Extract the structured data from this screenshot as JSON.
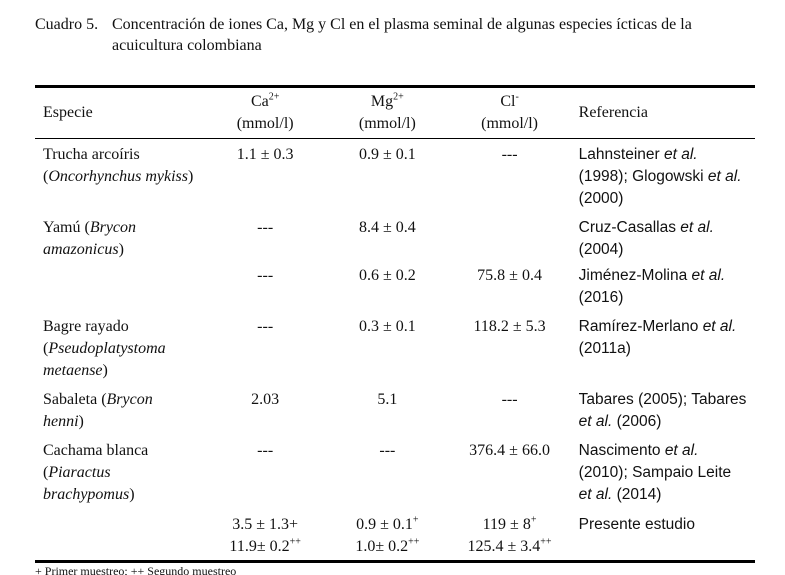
{
  "caption": {
    "label": "Cuadro 5.",
    "text": "Concentración de iones Ca, Mg y Cl en el plasma seminal de algunas especies ícticas de la acuicultura colombiana"
  },
  "table": {
    "header": {
      "especie": [
        {
          "t": "Especie"
        }
      ],
      "ca": [
        [
          {
            "t": "Ca"
          },
          {
            "sup": "2+"
          }
        ],
        [
          {
            "t": "(mmol/l)"
          }
        ]
      ],
      "mg": [
        [
          {
            "t": "Mg"
          },
          {
            "sup": "2+"
          }
        ],
        [
          {
            "t": "(mmol/l)"
          }
        ]
      ],
      "cl": [
        [
          {
            "t": "Cl"
          },
          {
            "sup": "-"
          }
        ],
        [
          {
            "t": "(mmol/l)"
          }
        ]
      ],
      "ref": [
        {
          "t": "Referencia"
        }
      ]
    },
    "rows": [
      {
        "especie": [
          {
            "t": "Trucha arcoíris ("
          },
          {
            "i": "Oncorhynchus mykiss"
          },
          {
            "t": ")"
          }
        ],
        "entries": [
          {
            "ca": [
              [
                {
                  "t": "1.1 ± 0.3"
                }
              ]
            ],
            "mg": [
              [
                {
                  "t": "0.9 ± 0.1"
                }
              ]
            ],
            "cl": [
              [
                {
                  "t": "---"
                }
              ]
            ],
            "ref": [
              {
                "t": "Lahnsteiner "
              },
              {
                "i": "et al."
              },
              {
                "t": " (1998); Glogowski "
              },
              {
                "i": "et al."
              },
              {
                "t": " (2000)"
              }
            ]
          }
        ]
      },
      {
        "especie": [
          {
            "t": "Yamú ("
          },
          {
            "i": "Brycon amazonicus"
          },
          {
            "t": ")"
          }
        ],
        "entries": [
          {
            "ca": [
              [
                {
                  "t": "---"
                }
              ]
            ],
            "mg": [
              [
                {
                  "t": "8.4 ± 0.4"
                }
              ]
            ],
            "cl": [],
            "ref": [
              {
                "t": "Cruz-Casallas "
              },
              {
                "i": "et al."
              },
              {
                "t": " (2004)"
              }
            ]
          },
          {
            "ca": [
              [
                {
                  "t": "---"
                }
              ]
            ],
            "mg": [
              [
                {
                  "t": "0.6 ± 0.2"
                }
              ]
            ],
            "cl": [
              [
                {
                  "t": "75.8 ± 0.4"
                }
              ]
            ],
            "ref": [
              {
                "t": "Jiménez-Molina "
              },
              {
                "i": "et al."
              },
              {
                "t": " (2016)"
              }
            ]
          }
        ]
      },
      {
        "especie": [
          {
            "t": "Bagre rayado ("
          },
          {
            "i": "Pseudoplatystoma metaense"
          },
          {
            "t": ")"
          }
        ],
        "entries": [
          {
            "ca": [
              [
                {
                  "t": "---"
                }
              ]
            ],
            "mg": [
              [
                {
                  "t": "0.3 ± 0.1"
                }
              ]
            ],
            "cl": [
              [
                {
                  "t": "118.2 ± 5.3"
                }
              ]
            ],
            "ref": [
              {
                "t": "Ramírez-Merlano "
              },
              {
                "i": "et al."
              },
              {
                "t": " (2011a)"
              }
            ]
          }
        ]
      },
      {
        "especie": [
          {
            "t": "Sabaleta ("
          },
          {
            "i": "Brycon henni"
          },
          {
            "t": ")"
          }
        ],
        "entries": [
          {
            "ca": [
              [
                {
                  "t": "2.03"
                }
              ]
            ],
            "mg": [
              [
                {
                  "t": "5.1"
                }
              ]
            ],
            "cl": [
              [
                {
                  "t": "---"
                }
              ]
            ],
            "ref": [
              {
                "t": "Tabares (2005); Tabares "
              },
              {
                "i": "et al."
              },
              {
                "t": " (2006)"
              }
            ]
          }
        ]
      },
      {
        "especie": [
          {
            "t": "Cachama blanca ("
          },
          {
            "i": "Piaractus brachypomus"
          },
          {
            "t": ")"
          }
        ],
        "entries": [
          {
            "ca": [
              [
                {
                  "t": "---"
                }
              ]
            ],
            "mg": [
              [
                {
                  "t": "---"
                }
              ]
            ],
            "cl": [
              [
                {
                  "t": "376.4 ± 66.0"
                }
              ]
            ],
            "ref": [
              {
                "t": "Nascimento "
              },
              {
                "i": "et al."
              },
              {
                "t": " (2010); Sampaio Leite "
              },
              {
                "i": "et al."
              },
              {
                "t": " (2014)"
              }
            ]
          }
        ]
      },
      {
        "especie": [],
        "entries": [
          {
            "ca": [
              [
                {
                  "t": "3.5 ± 1.3+"
                }
              ],
              [
                {
                  "t": "11.9± 0.2"
                },
                {
                  "sup": "++"
                }
              ]
            ],
            "mg": [
              [
                {
                  "t": "0.9 ± 0.1"
                },
                {
                  "sup": "+"
                }
              ],
              [
                {
                  "t": "1.0± 0.2"
                },
                {
                  "sup": "++"
                }
              ]
            ],
            "cl": [
              [
                {
                  "t": "119 ± 8"
                },
                {
                  "sup": "+"
                }
              ],
              [
                {
                  "t": "125.4 ± 3.4"
                },
                {
                  "sup": "++"
                }
              ]
            ],
            "ref": [
              {
                "t": "Presente estudio"
              }
            ]
          }
        ]
      }
    ]
  },
  "footnote": "+ Primer muestreo; ++ Segundo muestreo"
}
